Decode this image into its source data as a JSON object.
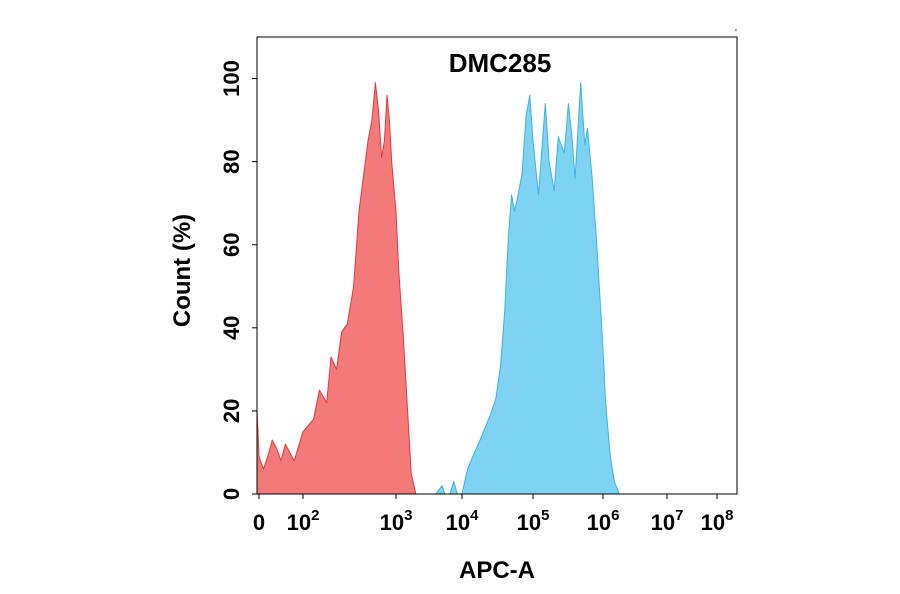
{
  "chart_data": {
    "type": "area",
    "title": "DMC285",
    "xlabel": "APC-A",
    "ylabel": "Count  (%)",
    "x_scale": "biexponential",
    "xlim": [
      -20,
      100000000
    ],
    "ylim": [
      0,
      110
    ],
    "x_ticks": [
      {
        "value": 0,
        "base": "0",
        "exp": ""
      },
      {
        "value": 100,
        "base": "10",
        "exp": "2"
      },
      {
        "value": 1000,
        "base": "10",
        "exp": "3"
      },
      {
        "value": 10000,
        "base": "10",
        "exp": "4"
      },
      {
        "value": 100000,
        "base": "10",
        "exp": "5"
      },
      {
        "value": 1000000,
        "base": "10",
        "exp": "6"
      },
      {
        "value": 10000000,
        "base": "10",
        "exp": "7"
      },
      {
        "value": 100000000,
        "base": "10",
        "exp": "8"
      }
    ],
    "y_ticks": [
      0,
      20,
      40,
      60,
      80,
      100
    ],
    "grid": false,
    "legend": "none",
    "series": [
      {
        "color": "#f47a7a",
        "stroke": "#e0393f",
        "points": [
          [
            -20,
            20
          ],
          [
            -10,
            15
          ],
          [
            0,
            9
          ],
          [
            10,
            6
          ],
          [
            20,
            9
          ],
          [
            30,
            13
          ],
          [
            40,
            11
          ],
          [
            50,
            8
          ],
          [
            60,
            12
          ],
          [
            80,
            8
          ],
          [
            100,
            15
          ],
          [
            130,
            18
          ],
          [
            150,
            25
          ],
          [
            180,
            22
          ],
          [
            200,
            33
          ],
          [
            230,
            30
          ],
          [
            260,
            39
          ],
          [
            300,
            41
          ],
          [
            350,
            50
          ],
          [
            400,
            68
          ],
          [
            450,
            77
          ],
          [
            500,
            85
          ],
          [
            550,
            90
          ],
          [
            600,
            99
          ],
          [
            650,
            92
          ],
          [
            700,
            81
          ],
          [
            750,
            85
          ],
          [
            800,
            96
          ],
          [
            850,
            90
          ],
          [
            900,
            80
          ],
          [
            1000,
            68
          ],
          [
            1100,
            54
          ],
          [
            1300,
            37
          ],
          [
            1500,
            20
          ],
          [
            1700,
            5
          ],
          [
            2000,
            0
          ]
        ]
      },
      {
        "color": "#7fd3f2",
        "stroke": "#3fb0e0",
        "points": [
          [
            4000,
            0
          ],
          [
            5000,
            2
          ],
          [
            5500,
            0
          ],
          [
            6500,
            0
          ],
          [
            7500,
            3
          ],
          [
            8500,
            0
          ],
          [
            10000,
            0
          ],
          [
            12000,
            6
          ],
          [
            15000,
            10
          ],
          [
            18000,
            13
          ],
          [
            20000,
            15
          ],
          [
            25000,
            19
          ],
          [
            30000,
            23
          ],
          [
            35000,
            31
          ],
          [
            40000,
            44
          ],
          [
            45000,
            62
          ],
          [
            50000,
            72
          ],
          [
            55000,
            68
          ],
          [
            60000,
            71
          ],
          [
            70000,
            77
          ],
          [
            80000,
            91
          ],
          [
            90000,
            96
          ],
          [
            100000,
            85
          ],
          [
            120000,
            72
          ],
          [
            150000,
            94
          ],
          [
            170000,
            80
          ],
          [
            200000,
            73
          ],
          [
            230000,
            86
          ],
          [
            280000,
            82
          ],
          [
            320000,
            94
          ],
          [
            360000,
            86
          ],
          [
            400000,
            76
          ],
          [
            480000,
            99
          ],
          [
            550000,
            84
          ],
          [
            600000,
            88
          ],
          [
            700000,
            76
          ],
          [
            800000,
            62
          ],
          [
            900000,
            48
          ],
          [
            1000000,
            35
          ],
          [
            1100000,
            22
          ],
          [
            1300000,
            9
          ],
          [
            1500000,
            3
          ],
          [
            1800000,
            0
          ]
        ]
      }
    ]
  }
}
